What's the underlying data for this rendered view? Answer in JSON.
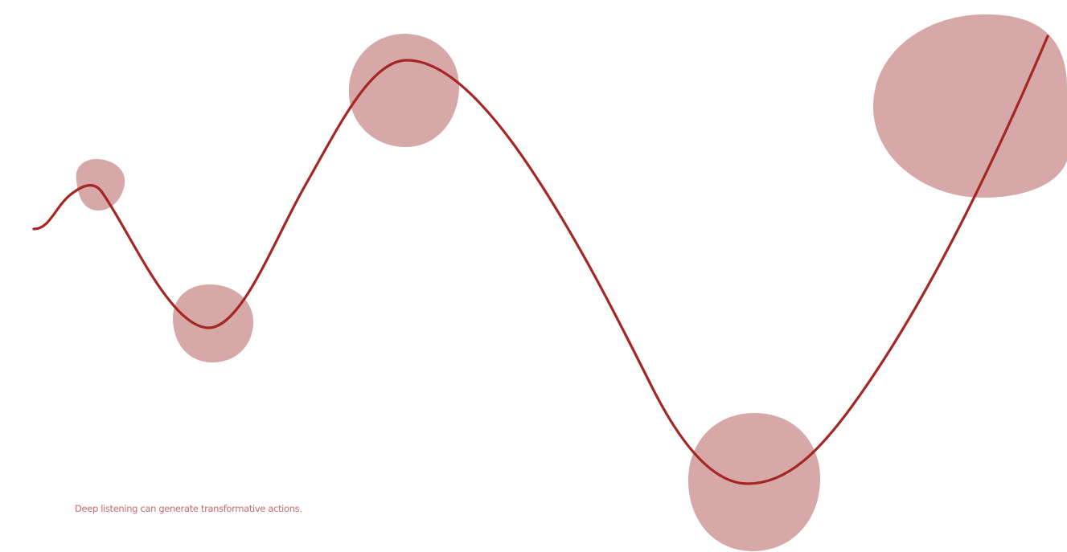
{
  "caption": "Deep listening can generate transformative actions.",
  "colors": {
    "background": "#ffffff",
    "curve": "#a52622",
    "blob": "#cd9595",
    "caption": "#c96b6b"
  },
  "blob_count": 5
}
